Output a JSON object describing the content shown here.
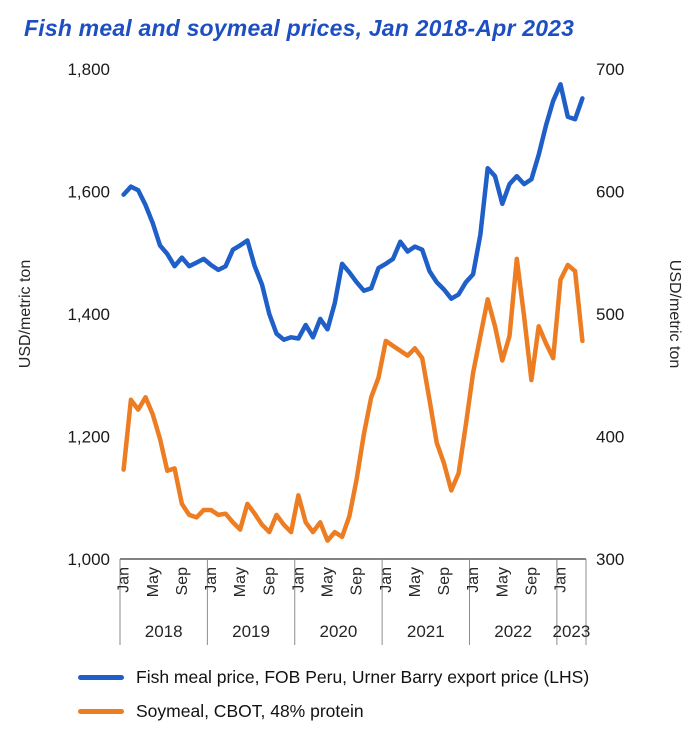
{
  "title": "Fish meal and soymeal prices, Jan 2018-Apr 2023",
  "colors": {
    "title": "#1e4fc2",
    "fishmeal": "#1f5fc8",
    "soymeal": "#ed7d23",
    "axis_line": "#595959",
    "separator": "#8c8c8c"
  },
  "chart_data": {
    "type": "line",
    "title": "Fish meal and soymeal prices, Jan 2018-Apr 2023",
    "ylabel_left": "USD/metric ton",
    "ylabel_right": "USD/metric ton",
    "grid": false,
    "legend_position": "bottom",
    "left_axis": {
      "min": 1000,
      "max": 1800,
      "ticks": [
        {
          "value": 1000,
          "label": "1,000"
        },
        {
          "value": 1200,
          "label": "1,200"
        },
        {
          "value": 1400,
          "label": "1,400"
        },
        {
          "value": 1600,
          "label": "1,600"
        },
        {
          "value": 1800,
          "label": "1,800"
        }
      ]
    },
    "right_axis": {
      "min": 300,
      "max": 700,
      "ticks": [
        {
          "value": 300,
          "label": "300"
        },
        {
          "value": 400,
          "label": "400"
        },
        {
          "value": 500,
          "label": "500"
        },
        {
          "value": 600,
          "label": "600"
        },
        {
          "value": 700,
          "label": "700"
        }
      ]
    },
    "years": [
      {
        "label": "2018",
        "months": 12
      },
      {
        "label": "2019",
        "months": 12
      },
      {
        "label": "2020",
        "months": 12
      },
      {
        "label": "2021",
        "months": 12
      },
      {
        "label": "2022",
        "months": 12
      },
      {
        "label": "2023",
        "months": 4
      }
    ],
    "month_tick_labels": [
      {
        "month_index": 0,
        "label": "Jan"
      },
      {
        "month_index": 4,
        "label": "May"
      },
      {
        "month_index": 8,
        "label": "Sep"
      }
    ],
    "series": [
      {
        "key": "fishmeal",
        "name": "Fish meal price, FOB Peru, Urner Barry export price (LHS)",
        "axis": "left",
        "color": "#1f5fc8",
        "values": [
          1595,
          1608,
          1602,
          1578,
          1548,
          1512,
          1498,
          1478,
          1492,
          1478,
          1484,
          1490,
          1480,
          1472,
          1478,
          1505,
          1512,
          1520,
          1478,
          1448,
          1400,
          1368,
          1358,
          1362,
          1360,
          1382,
          1362,
          1392,
          1375,
          1418,
          1482,
          1468,
          1452,
          1438,
          1442,
          1475,
          1482,
          1490,
          1518,
          1502,
          1510,
          1505,
          1470,
          1452,
          1440,
          1425,
          1432,
          1452,
          1465,
          1530,
          1638,
          1625,
          1580,
          1612,
          1625,
          1612,
          1620,
          1660,
          1708,
          1748,
          1775,
          1722,
          1718,
          1752
        ]
      },
      {
        "key": "soymeal",
        "name": "Soymeal, CBOT, 48% protein",
        "axis": "right",
        "color": "#ed7d23",
        "values": [
          373,
          430,
          422,
          432,
          418,
          398,
          372,
          374,
          345,
          336,
          334,
          340,
          340,
          336,
          337,
          330,
          324,
          345,
          337,
          328,
          322,
          336,
          328,
          322,
          352,
          330,
          322,
          330,
          315,
          322,
          318,
          335,
          365,
          402,
          432,
          448,
          478,
          474,
          470,
          466,
          472,
          464,
          430,
          395,
          378,
          356,
          370,
          410,
          452,
          482,
          512,
          490,
          462,
          482,
          545,
          498,
          446,
          490,
          476,
          464,
          528,
          540,
          535,
          478
        ]
      }
    ]
  }
}
